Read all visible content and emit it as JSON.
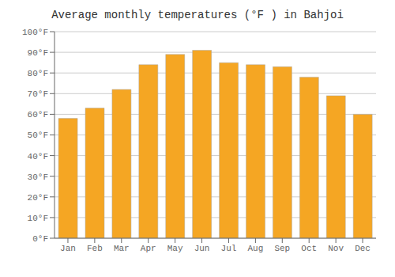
{
  "chart_data": {
    "type": "bar",
    "title": "Average monthly temperatures (°F ) in Bahjoi",
    "categories": [
      "Jan",
      "Feb",
      "Mar",
      "Apr",
      "May",
      "Jun",
      "Jul",
      "Aug",
      "Sep",
      "Oct",
      "Nov",
      "Dec"
    ],
    "values": [
      58,
      63,
      72,
      84,
      89,
      91,
      85,
      84,
      83,
      78,
      69,
      60
    ],
    "color": "#F5A623",
    "ylim": [
      0,
      100
    ],
    "yticks": [
      {
        "value": 0,
        "label": "0°F"
      },
      {
        "value": 10,
        "label": "10°F"
      },
      {
        "value": 20,
        "label": "20°F"
      },
      {
        "value": 30,
        "label": "30°F"
      },
      {
        "value": 40,
        "label": "40°F"
      },
      {
        "value": 50,
        "label": "50°F"
      },
      {
        "value": 60,
        "label": "60°F"
      },
      {
        "value": 70,
        "label": "70°F"
      },
      {
        "value": 80,
        "label": "80°F"
      },
      {
        "value": 90,
        "label": "90°F"
      },
      {
        "value": 100,
        "label": "100°F"
      }
    ],
    "grid": true
  }
}
